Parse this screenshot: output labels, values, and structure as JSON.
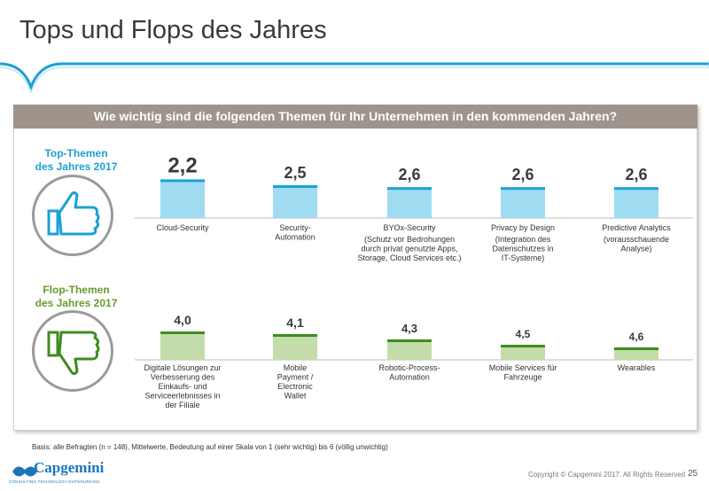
{
  "page": {
    "title": "Tops und Flops des Jahres",
    "question": "Wie wichtig sind die folgenden Themen für Ihr Unternehmen in den kommenden Jahren?",
    "top_heading": "Top-Themen\ndes Jahres 2017",
    "flop_heading": "Flop-Themen\ndes Jahres 2017",
    "footnote": "Basis:   alle Befragten (n = 148), Mittelwerte,  Bedeutung  auf einer Skala von 1 (sehr wichtig) bis 6 (völlig unwichtig)",
    "copyright": "Copyright © Capgemini 2017. All Rights Reserved",
    "page_number": "25",
    "logo_name": "Capgemini",
    "logo_tagline": "CONSULTING.TECHNOLOGY.OUTSOURCING",
    "icons": [
      "thumbs-up-icon",
      "thumbs-down-icon"
    ]
  },
  "chart_data": [
    {
      "type": "bar",
      "name": "top",
      "categories": [
        "Cloud-Security",
        "Security-\nAutomation",
        "BYOx-Security\n(Schutz vor Bedrohungen\ndurch privat genutzte Apps,\nStorage, Cloud Services etc.)",
        "Privacy by Design\n(Integration des\nDatenschutzes in\nIT-Systeme)",
        "Predictive Analytics\n(vorausschauende\nAnalyse)"
      ],
      "values": [
        2.2,
        2.5,
        2.6,
        2.6,
        2.6
      ],
      "labels": [
        "2,2",
        "2,5",
        "2,6",
        "2,6",
        "2,6"
      ],
      "ylim": [
        1,
        6
      ],
      "color": "#9fdcf1",
      "accent_color": "#1ba1d6"
    },
    {
      "type": "bar",
      "name": "flop",
      "categories": [
        "Digitale Lösungen zur\nVerbesserung des\nEinkaufs- und\nServiceerlebnisses in\nder Filiale",
        "Mobile\nPayment /\nElectronic\nWallet",
        "Robotic-Process-\nAutomation",
        "Mobile Services für\nFahrzeuge",
        "Wearables"
      ],
      "values": [
        4.0,
        4.1,
        4.3,
        4.5,
        4.6
      ],
      "labels": [
        "4,0",
        "4,1",
        "4,3",
        "4,5",
        "4,6"
      ],
      "ylim": [
        1,
        6
      ],
      "color": "#c4dcaa",
      "accent_color": "#3d8d1e"
    }
  ]
}
